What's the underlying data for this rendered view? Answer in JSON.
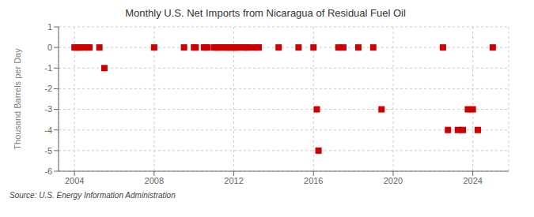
{
  "chart_data": {
    "type": "scatter",
    "title": "Monthly U.S. Net Imports from Nicaragua of Residual Fuel Oil",
    "ylabel": "Thousand Barrels per Day",
    "annotations": [
      "Source: U.S. Energy Information Administration"
    ],
    "color": "#cc0000",
    "marker": "square",
    "grid": true,
    "xlim": [
      2003.2,
      2025.8
    ],
    "ylim": [
      -6,
      1
    ],
    "xticks": [
      2004,
      2008,
      2012,
      2016,
      2020,
      2024
    ],
    "yticks": [
      1,
      0,
      -1,
      -2,
      -3,
      -4,
      -5,
      -6
    ],
    "x": [
      2004.0,
      2004.083,
      2004.167,
      2004.25,
      2004.333,
      2004.5,
      2004.667,
      2004.75,
      2005.25,
      2005.5,
      2008.0,
      2009.5,
      2010.0,
      2010.083,
      2010.5,
      2010.583,
      2010.667,
      2011.0,
      2011.083,
      2011.167,
      2011.25,
      2011.333,
      2011.5,
      2011.583,
      2011.667,
      2011.75,
      2011.833,
      2011.917,
      2012.0,
      2012.083,
      2012.167,
      2012.25,
      2012.5,
      2012.583,
      2012.667,
      2012.75,
      2013.0,
      2013.167,
      2013.25,
      2014.25,
      2015.25,
      2016.0,
      2016.167,
      2016.25,
      2017.25,
      2017.5,
      2018.25,
      2019.0,
      2019.417,
      2022.5,
      2022.75,
      2023.25,
      2023.5,
      2023.75,
      2024.0,
      2024.25,
      2025.0
    ],
    "values": [
      0,
      0,
      0,
      0,
      0,
      0,
      0,
      0,
      0,
      -1,
      0,
      0,
      0,
      0,
      0,
      0,
      0,
      0,
      0,
      0,
      0,
      0,
      0,
      0,
      0,
      0,
      0,
      0,
      0,
      0,
      0,
      0,
      0,
      0,
      0,
      0,
      0,
      0,
      0,
      0,
      0,
      0,
      -3,
      -5,
      0,
      0,
      0,
      0,
      -3,
      0,
      -4,
      -4,
      -4,
      -3,
      -3,
      -4,
      0
    ]
  }
}
